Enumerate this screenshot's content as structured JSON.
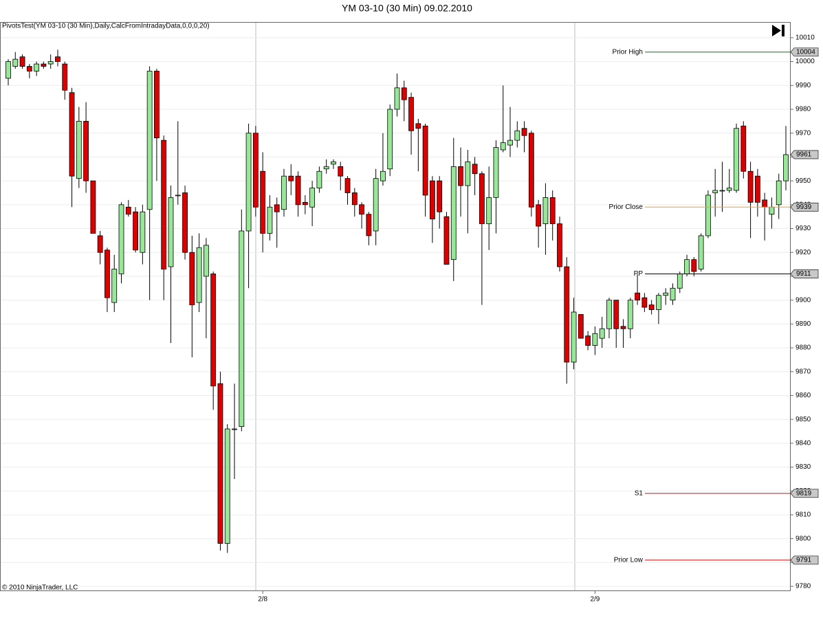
{
  "chart_data": {
    "type": "candlestick",
    "title": "YM 03-10 (30 Min)  09.02.2010",
    "indicator_label": "PivotsTest(YM 03-10 (30 Min),Daily,CalcFromIntradayData,0,0,0,20)",
    "copyright": "© 2010 NinjaTrader, LLC",
    "categories": [
      null,
      null,
      null,
      null,
      null,
      null,
      null,
      null,
      null,
      null,
      null,
      null,
      null,
      null,
      null,
      null,
      null,
      null,
      null,
      null,
      null,
      null,
      null,
      null,
      null,
      null,
      null,
      null,
      null,
      null,
      null,
      null,
      null,
      null,
      null,
      null,
      "2/8",
      null,
      null,
      null,
      null,
      null,
      null,
      null,
      null,
      null,
      null,
      null,
      null,
      null,
      null,
      null,
      null,
      null,
      null,
      null,
      null,
      null,
      null,
      null,
      null,
      null,
      null,
      null,
      null,
      null,
      null,
      null,
      null,
      null,
      null,
      null,
      null,
      null,
      null,
      null,
      null,
      null,
      null,
      null,
      null,
      null,
      null,
      "2/9",
      null,
      null,
      null,
      null,
      null,
      null,
      null,
      null,
      null,
      null,
      null,
      null,
      null,
      null,
      null,
      null,
      null,
      null,
      null,
      null,
      null,
      null,
      null,
      null,
      null,
      null,
      null
    ],
    "open": [
      9993,
      9998,
      10002,
      9998,
      9996,
      9999,
      9999,
      10002,
      9999,
      9987,
      9951,
      9975,
      9950,
      9927,
      9921,
      9899,
      9911,
      9939,
      9937,
      9920,
      9938,
      9996,
      9967,
      9914,
      9944,
      9945,
      9920,
      9899,
      9910,
      9911,
      9865,
      9798,
      9846,
      9847,
      9929,
      9970,
      9954,
      9928,
      9940,
      9938,
      9952,
      9952,
      9941,
      9939,
      9947,
      9955,
      9957,
      9956,
      9951,
      9945,
      9940,
      9936,
      9929,
      9950,
      9955,
      9980,
      9989,
      9985,
      9974,
      9973,
      9950,
      9950,
      9935,
      9917,
      9956,
      9948,
      9957,
      9953,
      9932,
      9943,
      9963,
      9965,
      9967,
      9972,
      9970,
      9940,
      9932,
      9943,
      9932,
      9914,
      9874,
      9894,
      9885,
      9881,
      9884,
      9888,
      9900,
      9889,
      9888,
      9903,
      9901,
      9898,
      9896,
      9902,
      9900,
      9905,
      9911,
      9917,
      9913,
      9927,
      9945,
      9946,
      9946,
      9946,
      9973,
      9954,
      9952,
      9942,
      9936,
      9940,
      9950
    ],
    "high": [
      10001,
      10004,
      10003,
      9999,
      10000,
      10000,
      10003,
      10005,
      10000,
      9989,
      9981,
      9983,
      9950,
      9929,
      9922,
      9919,
      9941,
      9942,
      9939,
      9940,
      9998,
      9997,
      9969,
      9948,
      9975,
      9948,
      9927,
      9928,
      9926,
      9912,
      9870,
      9848,
      9865,
      9938,
      9974,
      9973,
      9962,
      9944,
      9943,
      9955,
      9957,
      9954,
      9944,
      9950,
      9956,
      9959,
      9959,
      9958,
      9952,
      9947,
      9941,
      9937,
      9955,
      9970,
      9982,
      9995,
      9992,
      9987,
      9976,
      9974,
      9952,
      9952,
      9937,
      9968,
      9964,
      9963,
      9960,
      9954,
      9956,
      9967,
      9990,
      9981,
      9975,
      9975,
      9971,
      9942,
      9949,
      9946,
      9935,
      9918,
      9901,
      9894,
      9887,
      9889,
      9893,
      9901,
      9900,
      9892,
      9901,
      9911,
      9903,
      9900,
      9903,
      9905,
      9907,
      9912,
      9919,
      9918,
      9928,
      9946,
      9955,
      9958,
      9955,
      9974,
      9975,
      9958,
      9955,
      9945,
      9943,
      9953,
      9973
    ],
    "low": [
      9990,
      9997,
      9997,
      9993,
      9994,
      9997,
      9997,
      9998,
      9984,
      9939,
      9947,
      9945,
      9928,
      9915,
      9895,
      9895,
      9907,
      9935,
      9920,
      9915,
      9900,
      9950,
      9900,
      9882,
      9940,
      9917,
      9876,
      9895,
      9884,
      9854,
      9795,
      9794,
      9825,
      9845,
      9905,
      9935,
      9920,
      9925,
      9922,
      9935,
      9944,
      9935,
      9936,
      9931,
      9945,
      9953,
      9955,
      9946,
      9940,
      9935,
      9930,
      9923,
      9923,
      9948,
      9952,
      9977,
      9975,
      9961,
      9954,
      9935,
      9924,
      9930,
      9915,
      9908,
      9935,
      9928,
      9944,
      9898,
      9921,
      9928,
      9962,
      9960,
      9964,
      9962,
      9935,
      9922,
      9919,
      9925,
      9912,
      9865,
      9871,
      9884,
      9879,
      9877,
      9880,
      9884,
      9880,
      9880,
      9884,
      9898,
      9895,
      9894,
      9890,
      9898,
      9898,
      9903,
      9910,
      9910,
      9912,
      9926,
      9935,
      9937,
      9945,
      9945,
      9951,
      9926,
      9935,
      9925,
      9930,
      9934,
      9946
    ],
    "close": [
      10000,
      10001,
      9998,
      9996,
      9999,
      9998,
      10000,
      10000,
      9988,
      9952,
      9975,
      9950,
      9928,
      9920,
      9901,
      9913,
      9940,
      9936,
      9921,
      9937,
      9996,
      9968,
      9913,
      9943,
      9944,
      9920,
      9898,
      9922,
      9923,
      9864,
      9798,
      9846,
      9846,
      9929,
      9970,
      9939,
      9928,
      9939,
      9937,
      9952,
      9950,
      9940,
      9940,
      9947,
      9954,
      9956,
      9958,
      9952,
      9945,
      9940,
      9936,
      9927,
      9951,
      9954,
      9980,
      9989,
      9984,
      9971,
      9972,
      9944,
      9934,
      9937,
      9915,
      9956,
      9948,
      9958,
      9953,
      9932,
      9943,
      9964,
      9966,
      9967,
      9971,
      9969,
      9939,
      9931,
      9943,
      9932,
      9914,
      9874,
      9895,
      9884,
      9881,
      9886,
      9888,
      9900,
      9888,
      9888,
      9900,
      9900,
      9897,
      9896,
      9902,
      9903,
      9905,
      9911,
      9917,
      9912,
      9927,
      9944,
      9946,
      9946,
      9947,
      9972,
      9954,
      9941,
      9941,
      9939,
      9939,
      9950,
      9961
    ],
    "up_color": "#98e698",
    "down_color": "#dd0000",
    "ylim": [
      9778,
      10016.6
    ],
    "yticks": [
      9780,
      9790,
      9800,
      9810,
      9820,
      9830,
      9840,
      9850,
      9860,
      9870,
      9880,
      9890,
      9900,
      9910,
      9920,
      9930,
      9940,
      9950,
      9960,
      9970,
      9980,
      9990,
      10000,
      10010
    ],
    "grid": true,
    "levels": [
      {
        "name": "Prior High",
        "value": 10004,
        "color": "#008000"
      },
      {
        "name": "Prior Close",
        "value": 9939,
        "color": "#f0a020"
      },
      {
        "name": "PP",
        "value": 9911,
        "color": "#000000"
      },
      {
        "name": "S1",
        "value": 9819,
        "color": "#ff0000"
      },
      {
        "name": "Prior Low",
        "value": 9791,
        "color": "#cc0000"
      }
    ],
    "last_price": 9961
  }
}
